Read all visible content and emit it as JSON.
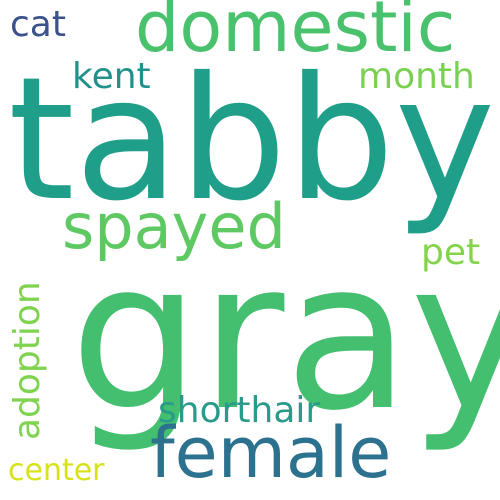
{
  "word_cloud": {
    "background": "#ffffff",
    "words": [
      {
        "key": "tabby",
        "text": "tabby",
        "color": "#1f9e89"
      },
      {
        "key": "gray",
        "text": "gray",
        "color": "#44bf70"
      },
      {
        "key": "domestic",
        "text": "domestic",
        "color": "#4ac16d"
      },
      {
        "key": "spayed",
        "text": "spayed",
        "color": "#5ec962"
      },
      {
        "key": "female",
        "text": "female",
        "color": "#2c728e"
      },
      {
        "key": "cat",
        "text": "cat",
        "color": "#3b528b"
      },
      {
        "key": "kent",
        "text": "kent",
        "color": "#21918c"
      },
      {
        "key": "month",
        "text": "month",
        "color": "#7ad151"
      },
      {
        "key": "pet",
        "text": "pet",
        "color": "#84d44b"
      },
      {
        "key": "shorthair",
        "text": "shorthair",
        "color": "#2a9a8a"
      },
      {
        "key": "center",
        "text": "center",
        "color": "#d8e219"
      },
      {
        "key": "adoption",
        "text": "adoption",
        "color": "#7fd34e",
        "orientation": "vertical"
      }
    ]
  }
}
